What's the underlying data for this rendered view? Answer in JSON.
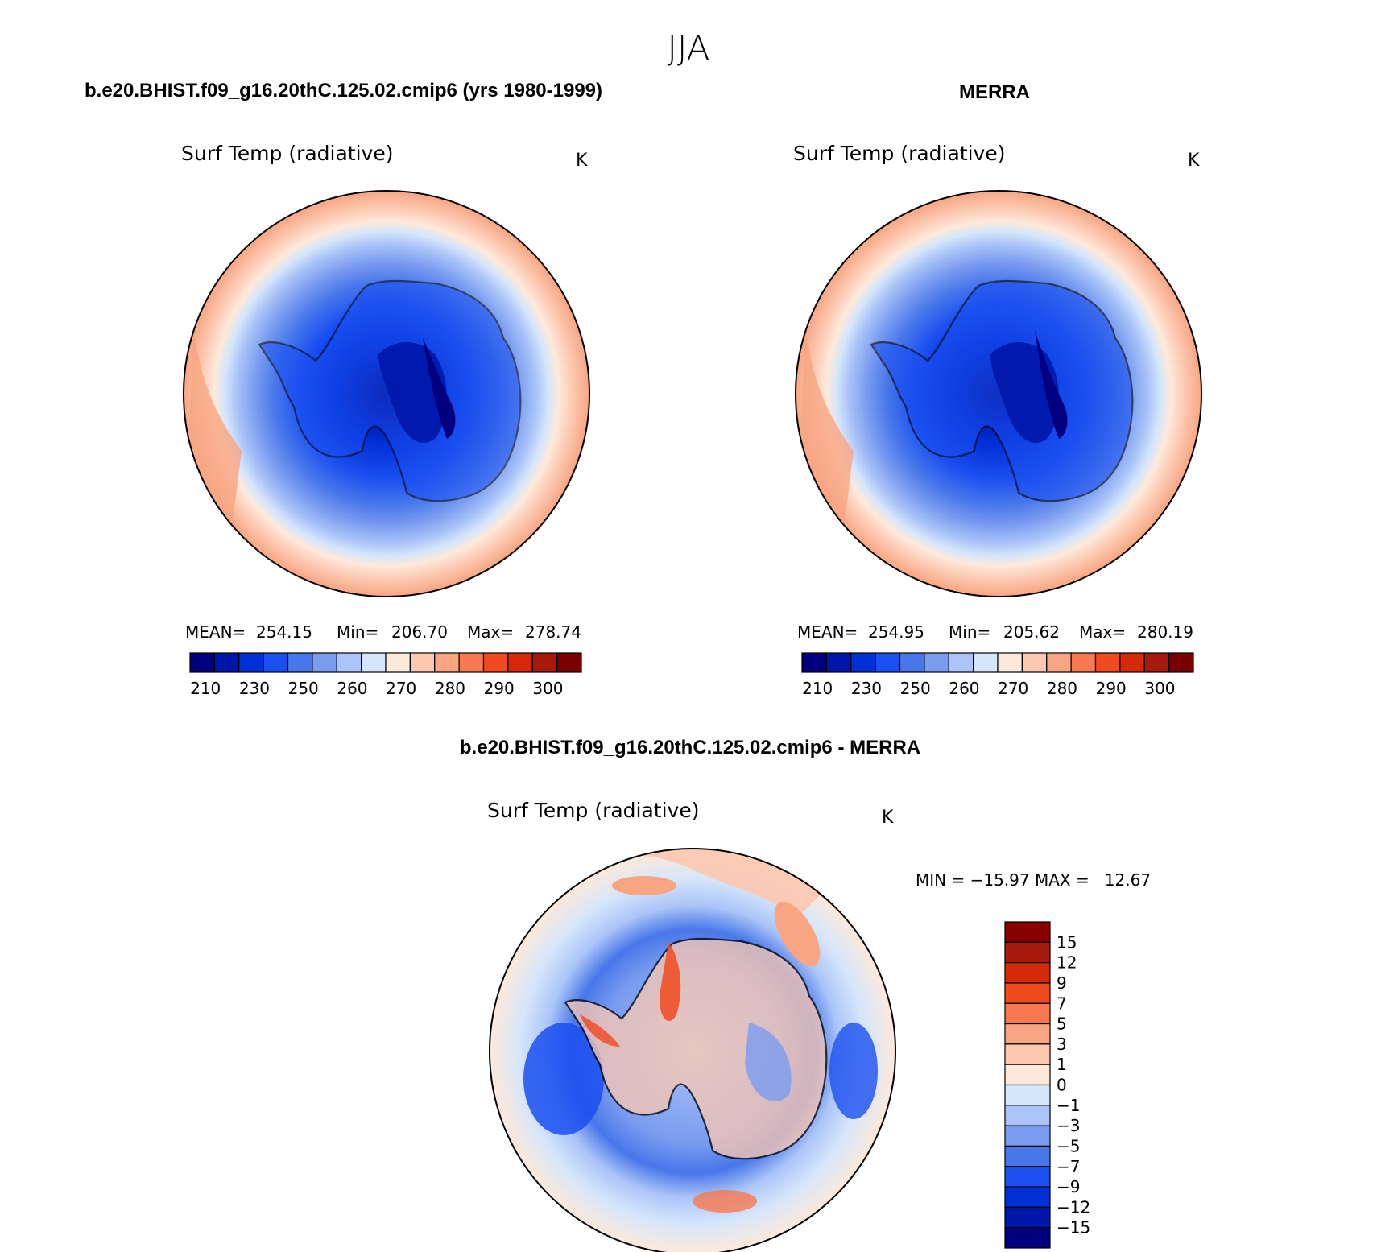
{
  "figure": {
    "season": "JJA",
    "left_title": "b.e20.BHIST.f09_g16.20thC.125.02.cmip6 (yrs 1980-1999)",
    "right_title": "MERRA",
    "diff_title": "b.e20.BHIST.f09_g16.20thC.125.02.cmip6 - MERRA"
  },
  "colors": {
    "abs_scale": [
      "#00007f",
      "#0016a8",
      "#0030d6",
      "#1a4ff0",
      "#4877ea",
      "#7a9cf0",
      "#aac4f7",
      "#d5e6fb",
      "#fde9da",
      "#fcc8b0",
      "#f8a582",
      "#f6794f",
      "#f04a1f",
      "#d42a08",
      "#a71a0a",
      "#780000"
    ],
    "diff_scale": [
      "#00007f",
      "#0016a8",
      "#0030d6",
      "#1a4ff0",
      "#4877ea",
      "#7a9cf0",
      "#aac4f7",
      "#d5e6fb",
      "#fde9da",
      "#fcc8b0",
      "#f8a582",
      "#f6794f",
      "#f04a1f",
      "#d42a08",
      "#a71a0a",
      "#8a0000"
    ]
  },
  "chart_data": [
    {
      "type": "heatmap",
      "projection": "south-polar-stereographic",
      "field": "Surf Temp (radiative)",
      "units": "K",
      "stats": {
        "mean_label": "MEAN=",
        "mean": "254.15",
        "min_label": "Min=",
        "min": "206.70",
        "max_label": "Max=",
        "max": "278.74"
      },
      "levels": [
        210,
        220,
        230,
        240,
        250,
        255,
        260,
        265,
        270,
        275,
        280,
        285,
        290,
        295,
        300
      ],
      "colorbar_labels": [
        "210",
        "230",
        "250",
        "260",
        "270",
        "280",
        "290",
        "300"
      ],
      "colorbar_orientation": "horizontal"
    },
    {
      "type": "heatmap",
      "projection": "south-polar-stereographic",
      "field": "Surf Temp (radiative)",
      "units": "K",
      "stats": {
        "mean_label": "MEAN=",
        "mean": "254.95",
        "min_label": "Min=",
        "min": "205.62",
        "max_label": "Max=",
        "max": "280.19"
      },
      "levels": [
        210,
        220,
        230,
        240,
        250,
        255,
        260,
        265,
        270,
        275,
        280,
        285,
        290,
        295,
        300
      ],
      "colorbar_labels": [
        "210",
        "230",
        "250",
        "260",
        "270",
        "280",
        "290",
        "300"
      ],
      "colorbar_orientation": "horizontal"
    },
    {
      "type": "heatmap",
      "projection": "south-polar-stereographic",
      "field": "Surf Temp (radiative)",
      "units": "K",
      "stats_text": "MIN = −15.97 MAX =   12.67",
      "levels": [
        -15,
        -12,
        -9,
        -7,
        -5,
        -3,
        -1,
        0,
        1,
        3,
        5,
        7,
        9,
        12,
        15
      ],
      "colorbar_labels": [
        "15",
        "12",
        "9",
        "7",
        "5",
        "3",
        "1",
        "0",
        "−1",
        "−3",
        "−5",
        "−7",
        "−9",
        "−12",
        "−15"
      ],
      "colorbar_orientation": "vertical"
    }
  ]
}
